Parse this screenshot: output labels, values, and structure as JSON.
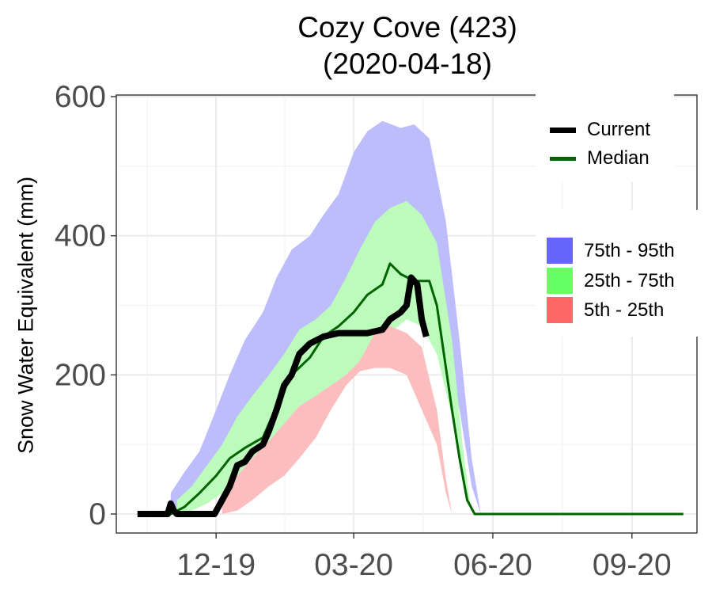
{
  "chart_data": {
    "type": "area",
    "title": "Cozy Cove (423)",
    "subtitle": "(2020-04-18)",
    "ylabel": "Snow Water Equivalent (mm)",
    "xlabel": "",
    "ylim": [
      0,
      600
    ],
    "yticks": [
      0,
      200,
      400,
      600
    ],
    "xlim": [
      "2019-09-26",
      "2020-10-14"
    ],
    "xticks": [
      {
        "date": "2019-12-01",
        "label": "12-19"
      },
      {
        "date": "2020-03-01",
        "label": "03-20"
      },
      {
        "date": "2020-06-01",
        "label": "06-20"
      },
      {
        "date": "2020-09-01",
        "label": "09-20"
      }
    ],
    "grid": true,
    "legend_position": "right",
    "bands": [
      {
        "name": "75th - 95th",
        "color": "#6666ff",
        "fill_color": "#bdbdfb",
        "x": [
          "2019-11-01",
          "2019-11-10",
          "2019-11-20",
          "2019-12-01",
          "2019-12-10",
          "2019-12-20",
          "2020-01-01",
          "2020-01-10",
          "2020-01-20",
          "2020-02-01",
          "2020-02-10",
          "2020-02-20",
          "2020-03-01",
          "2020-03-10",
          "2020-03-20",
          "2020-04-01",
          "2020-04-10",
          "2020-04-20",
          "2020-05-01",
          "2020-05-10",
          "2020-05-18",
          "2020-05-24"
        ],
        "lower": [
          0,
          10,
          30,
          60,
          90,
          120,
          150,
          170,
          195,
          210,
          240,
          260,
          300,
          340,
          360,
          350,
          320,
          310,
          250,
          150,
          40,
          0
        ],
        "upper": [
          30,
          60,
          90,
          150,
          200,
          250,
          290,
          340,
          380,
          400,
          430,
          460,
          520,
          550,
          565,
          555,
          560,
          540,
          420,
          250,
          80,
          0
        ]
      },
      {
        "name": "25th - 75th",
        "color": "#66ff66",
        "fill_color": "#bdfbbd",
        "x": [
          "2019-11-05",
          "2019-11-15",
          "2019-11-25",
          "2019-12-05",
          "2019-12-15",
          "2019-12-25",
          "2020-01-05",
          "2020-01-15",
          "2020-01-25",
          "2020-02-05",
          "2020-02-15",
          "2020-02-25",
          "2020-03-05",
          "2020-03-15",
          "2020-03-25",
          "2020-04-05",
          "2020-04-15",
          "2020-04-25",
          "2020-05-05",
          "2020-05-12",
          "2020-05-18"
        ],
        "lower": [
          0,
          5,
          15,
          30,
          55,
          80,
          105,
          130,
          155,
          170,
          185,
          200,
          220,
          250,
          260,
          280,
          270,
          230,
          140,
          50,
          0
        ],
        "upper": [
          20,
          40,
          70,
          100,
          140,
          170,
          200,
          230,
          265,
          280,
          300,
          340,
          380,
          420,
          440,
          450,
          430,
          390,
          250,
          100,
          0
        ]
      },
      {
        "name": "5th - 25th",
        "color": "#ff6666",
        "fill_color": "#fbbdbd",
        "x": [
          "2019-12-05",
          "2019-12-15",
          "2019-12-25",
          "2020-01-05",
          "2020-01-15",
          "2020-01-25",
          "2020-02-05",
          "2020-02-15",
          "2020-02-25",
          "2020-03-05",
          "2020-03-15",
          "2020-03-25",
          "2020-04-05",
          "2020-04-15",
          "2020-04-25",
          "2020-05-01",
          "2020-05-05"
        ],
        "lower": [
          0,
          5,
          20,
          40,
          55,
          80,
          110,
          150,
          185,
          205,
          210,
          210,
          200,
          150,
          100,
          30,
          0
        ],
        "upper": [
          30,
          55,
          80,
          105,
          130,
          155,
          170,
          185,
          200,
          220,
          260,
          270,
          260,
          240,
          150,
          50,
          0
        ]
      }
    ],
    "series": [
      {
        "name": "Median",
        "color": "#006400",
        "x": [
          "2019-10-10",
          "2019-11-01",
          "2019-11-10",
          "2019-11-20",
          "2019-12-01",
          "2019-12-10",
          "2019-12-20",
          "2020-01-01",
          "2020-01-10",
          "2020-01-20",
          "2020-02-01",
          "2020-02-10",
          "2020-02-20",
          "2020-03-01",
          "2020-03-10",
          "2020-03-20",
          "2020-03-25",
          "2020-04-01",
          "2020-04-10",
          "2020-04-20",
          "2020-04-25",
          "2020-05-01",
          "2020-05-05",
          "2020-05-10",
          "2020-05-15",
          "2020-05-20",
          "2020-06-15",
          "2020-10-05"
        ],
        "y": [
          0,
          0,
          10,
          30,
          55,
          80,
          95,
          110,
          155,
          200,
          225,
          255,
          270,
          290,
          315,
          330,
          360,
          345,
          335,
          335,
          300,
          210,
          150,
          80,
          20,
          0,
          0,
          0
        ]
      },
      {
        "name": "Current",
        "color": "#000000",
        "x": [
          "2019-10-10",
          "2019-10-30",
          "2019-11-01",
          "2019-11-03",
          "2019-11-05",
          "2019-11-30",
          "2019-12-05",
          "2019-12-10",
          "2019-12-15",
          "2019-12-20",
          "2019-12-25",
          "2020-01-01",
          "2020-01-05",
          "2020-01-10",
          "2020-01-15",
          "2020-01-20",
          "2020-01-25",
          "2020-02-01",
          "2020-02-10",
          "2020-02-20",
          "2020-03-01",
          "2020-03-10",
          "2020-03-20",
          "2020-03-25",
          "2020-04-01",
          "2020-04-05",
          "2020-04-08",
          "2020-04-12",
          "2020-04-15",
          "2020-04-18"
        ],
        "y": [
          0,
          0,
          15,
          5,
          0,
          0,
          20,
          40,
          70,
          75,
          90,
          100,
          120,
          150,
          185,
          200,
          230,
          245,
          255,
          260,
          260,
          260,
          265,
          280,
          290,
          300,
          340,
          330,
          280,
          255
        ]
      }
    ]
  }
}
